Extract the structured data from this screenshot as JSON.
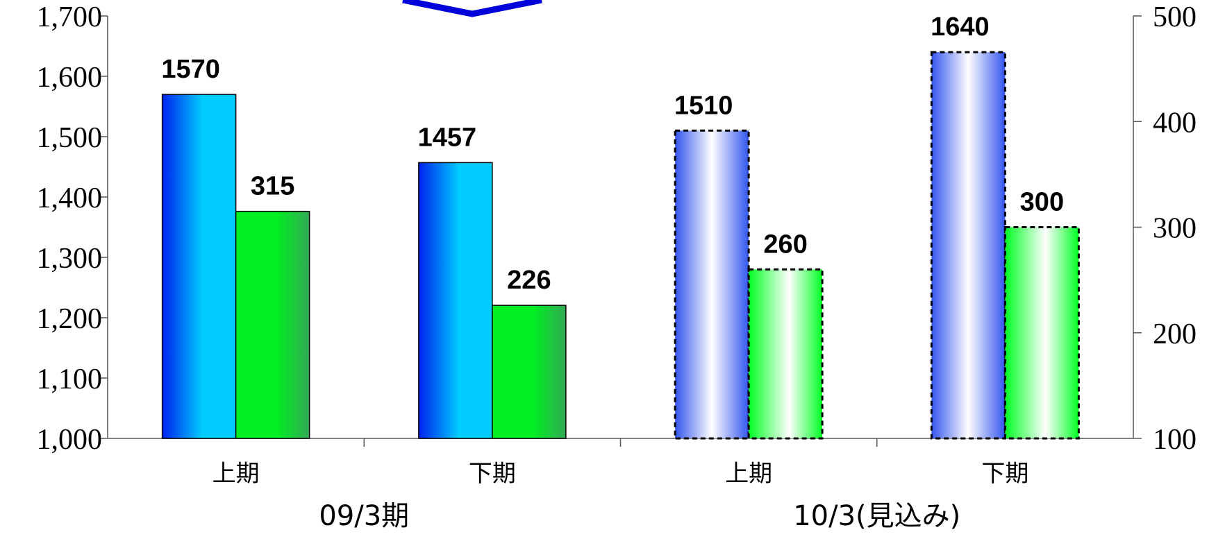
{
  "chart_data": {
    "type": "bar",
    "categories": [
      "上期",
      "下期",
      "上期",
      "下期"
    ],
    "groups": [
      {
        "label": "09/3期",
        "categories": [
          0,
          1
        ]
      },
      {
        "label": "10/3(見込み)",
        "categories": [
          2,
          3
        ]
      }
    ],
    "series": [
      {
        "axis": "left",
        "values": [
          1570,
          1457,
          1510,
          1640
        ],
        "value_labels": [
          "1570",
          "1457",
          "1510",
          "1640"
        ],
        "estimate": [
          false,
          false,
          true,
          true
        ],
        "colors": {
          "actual": [
            "#0022ee",
            "#00ccff"
          ],
          "estimate": [
            "#3355ee",
            "#ffffff"
          ],
          "stroke": "#000000"
        }
      },
      {
        "axis": "right",
        "values": [
          315,
          226,
          260,
          300
        ],
        "value_labels": [
          "315",
          "226",
          "260",
          "300"
        ],
        "estimate": [
          false,
          false,
          true,
          true
        ],
        "colors": {
          "actual": [
            "#00ee22",
            "#33aa55"
          ],
          "estimate": [
            "#00ff22",
            "#ffffff"
          ],
          "stroke": "#000000"
        }
      }
    ],
    "y_left": {
      "min": 1000,
      "max": 1700,
      "ticks": [
        1000,
        1100,
        1200,
        1300,
        1400,
        1500,
        1600,
        1700
      ],
      "tick_labels": [
        "1,000",
        "1,100",
        "1,200",
        "1,300",
        "1,400",
        "1,500",
        "1,600",
        "1,700"
      ]
    },
    "y_right": {
      "min": 100,
      "max": 500,
      "ticks": [
        100,
        200,
        300,
        400,
        500
      ],
      "tick_labels": [
        "100",
        "200",
        "300",
        "400",
        "500"
      ]
    },
    "grid": false,
    "legend": "none",
    "decoration": {
      "shape": "chevron-arrow",
      "color": "#0000dd"
    }
  }
}
